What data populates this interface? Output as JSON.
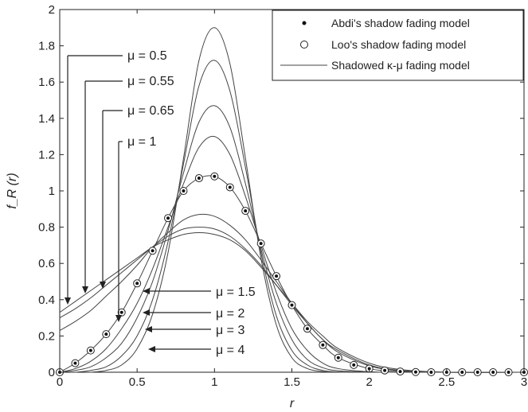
{
  "chart_data": {
    "type": "line",
    "xlabel": "r",
    "ylabel": "f_R (r)",
    "xlim": [
      0,
      3
    ],
    "ylim": [
      0,
      2
    ],
    "xticks": [
      "0",
      "0.5",
      "1",
      "1.5",
      "2",
      "2.5",
      "3"
    ],
    "yticks": [
      "0",
      "0.2",
      "0.4",
      "0.6",
      "0.8",
      "1",
      "1.2",
      "1.4",
      "1.6",
      "1.8",
      "2"
    ],
    "grid": false,
    "legend_position": "top-right",
    "legend": [
      {
        "label": "Abdi's shadow fading model",
        "marker": "filled-dot"
      },
      {
        "label": "Loo's shadow fading model",
        "marker": "open-circle"
      },
      {
        "label": "Shadowed κ-μ fading model",
        "marker": "line"
      }
    ],
    "series": [
      {
        "mu_label": "μ = 0.5",
        "x": [
          0,
          0.1,
          0.2,
          0.3,
          0.4,
          0.5,
          0.6,
          0.7,
          0.8,
          0.9,
          1.0,
          1.1,
          1.2,
          1.3,
          1.4,
          1.5,
          1.6,
          1.7,
          1.8,
          2.0,
          2.2,
          2.5,
          3.0
        ],
        "y": [
          0.33,
          0.39,
          0.45,
          0.51,
          0.57,
          0.63,
          0.69,
          0.73,
          0.76,
          0.77,
          0.76,
          0.73,
          0.67,
          0.58,
          0.48,
          0.38,
          0.28,
          0.2,
          0.13,
          0.05,
          0.015,
          0,
          0
        ]
      },
      {
        "mu_label": "μ = 0.55",
        "x": [
          0,
          0.1,
          0.2,
          0.3,
          0.4,
          0.5,
          0.6,
          0.7,
          0.8,
          0.9,
          1.0,
          1.1,
          1.2,
          1.3,
          1.4,
          1.5,
          1.6,
          1.7,
          1.8,
          2.0,
          2.2,
          2.5,
          3.0
        ],
        "y": [
          0.3,
          0.35,
          0.41,
          0.48,
          0.55,
          0.62,
          0.69,
          0.75,
          0.79,
          0.8,
          0.79,
          0.75,
          0.68,
          0.59,
          0.48,
          0.37,
          0.27,
          0.18,
          0.12,
          0.04,
          0.01,
          0,
          0
        ]
      },
      {
        "mu_label": "μ = 0.65",
        "x": [
          0,
          0.1,
          0.2,
          0.3,
          0.4,
          0.5,
          0.6,
          0.7,
          0.8,
          0.9,
          1.0,
          1.1,
          1.2,
          1.3,
          1.4,
          1.5,
          1.6,
          1.7,
          1.8,
          2.0,
          2.2,
          2.5,
          3.0
        ],
        "y": [
          0.23,
          0.28,
          0.34,
          0.42,
          0.5,
          0.59,
          0.69,
          0.77,
          0.84,
          0.87,
          0.86,
          0.81,
          0.73,
          0.62,
          0.5,
          0.38,
          0.27,
          0.18,
          0.11,
          0.035,
          0.008,
          0,
          0
        ]
      },
      {
        "mu_label": "μ = 1",
        "x": [
          0,
          0.1,
          0.2,
          0.3,
          0.4,
          0.5,
          0.6,
          0.7,
          0.8,
          0.9,
          1.0,
          1.1,
          1.2,
          1.3,
          1.4,
          1.5,
          1.6,
          1.7,
          1.8,
          2.0,
          2.2,
          2.5,
          3.0
        ],
        "y": [
          0.0,
          0.05,
          0.12,
          0.21,
          0.33,
          0.49,
          0.67,
          0.85,
          1.0,
          1.07,
          1.08,
          1.02,
          0.89,
          0.71,
          0.53,
          0.37,
          0.24,
          0.15,
          0.08,
          0.02,
          0.004,
          0,
          0
        ]
      },
      {
        "mu_label": "μ = 1.5",
        "x": [
          0,
          0.1,
          0.2,
          0.3,
          0.4,
          0.5,
          0.6,
          0.7,
          0.8,
          0.9,
          1.0,
          1.1,
          1.2,
          1.3,
          1.4,
          1.5,
          1.6,
          1.7,
          1.8,
          2.0,
          2.2,
          2.5,
          3.0
        ],
        "y": [
          0,
          0.02,
          0.06,
          0.13,
          0.24,
          0.38,
          0.57,
          0.8,
          1.04,
          1.24,
          1.3,
          1.2,
          0.97,
          0.7,
          0.44,
          0.24,
          0.12,
          0.05,
          0.02,
          0.003,
          0,
          0,
          0
        ]
      },
      {
        "mu_label": "μ = 2",
        "x": [
          0,
          0.1,
          0.2,
          0.3,
          0.4,
          0.5,
          0.6,
          0.7,
          0.8,
          0.9,
          1.0,
          1.1,
          1.2,
          1.3,
          1.4,
          1.5,
          1.6,
          1.7,
          1.8,
          2.0,
          2.2,
          2.5,
          3.0
        ],
        "y": [
          0,
          0.01,
          0.03,
          0.08,
          0.16,
          0.3,
          0.5,
          0.78,
          1.1,
          1.38,
          1.47,
          1.35,
          1.04,
          0.68,
          0.38,
          0.18,
          0.07,
          0.025,
          0.008,
          0.001,
          0,
          0,
          0
        ]
      },
      {
        "mu_label": "μ = 3",
        "x": [
          0,
          0.1,
          0.2,
          0.3,
          0.4,
          0.5,
          0.6,
          0.7,
          0.8,
          0.9,
          1.0,
          1.1,
          1.2,
          1.3,
          1.4,
          1.5,
          1.6,
          1.7,
          1.8,
          2.0,
          2.2,
          2.5,
          3.0
        ],
        "y": [
          0,
          0,
          0.01,
          0.03,
          0.09,
          0.2,
          0.4,
          0.72,
          1.15,
          1.58,
          1.72,
          1.55,
          1.13,
          0.66,
          0.31,
          0.12,
          0.04,
          0.01,
          0.002,
          0,
          0,
          0,
          0
        ]
      },
      {
        "mu_label": "μ = 4",
        "x": [
          0,
          0.1,
          0.2,
          0.3,
          0.4,
          0.5,
          0.6,
          0.7,
          0.8,
          0.9,
          1.0,
          1.1,
          1.2,
          1.3,
          1.4,
          1.5,
          1.6,
          1.7,
          1.8,
          2.0,
          2.2,
          2.5,
          3.0
        ],
        "y": [
          0,
          0,
          0,
          0.01,
          0.04,
          0.13,
          0.32,
          0.66,
          1.18,
          1.72,
          1.9,
          1.7,
          1.18,
          0.63,
          0.26,
          0.08,
          0.02,
          0.004,
          0,
          0,
          0,
          0,
          0
        ]
      }
    ],
    "markers": {
      "x": [
        0,
        0.1,
        0.2,
        0.3,
        0.4,
        0.5,
        0.6,
        0.7,
        0.8,
        0.9,
        1.0,
        1.1,
        1.2,
        1.3,
        1.4,
        1.5,
        1.6,
        1.7,
        1.8,
        1.9,
        2.0,
        2.1,
        2.2,
        2.3,
        2.4,
        2.5,
        2.6,
        2.7,
        2.8,
        2.9,
        3.0
      ],
      "y": [
        0.0,
        0.05,
        0.12,
        0.21,
        0.33,
        0.49,
        0.67,
        0.85,
        1.0,
        1.07,
        1.08,
        1.02,
        0.89,
        0.71,
        0.53,
        0.37,
        0.24,
        0.15,
        0.08,
        0.04,
        0.02,
        0.01,
        0.004,
        0.001,
        0,
        0,
        0,
        0,
        0,
        0,
        0
      ]
    },
    "annotations_left": [
      {
        "text": "μ = 0.5",
        "points_to_x": 0.05
      },
      {
        "text": "μ = 0.55",
        "points_to_x": 0.15
      },
      {
        "text": "μ = 0.65",
        "points_to_x": 0.27
      },
      {
        "text": "μ = 1",
        "points_to_x": 0.37
      }
    ],
    "annotations_right": [
      {
        "text": "μ = 1.5",
        "points_to_x": 0.55
      },
      {
        "text": "μ = 2",
        "points_to_x": 0.57
      },
      {
        "text": "μ = 3",
        "points_to_x": 0.58
      },
      {
        "text": "μ = 4",
        "points_to_x": 0.6
      }
    ]
  }
}
